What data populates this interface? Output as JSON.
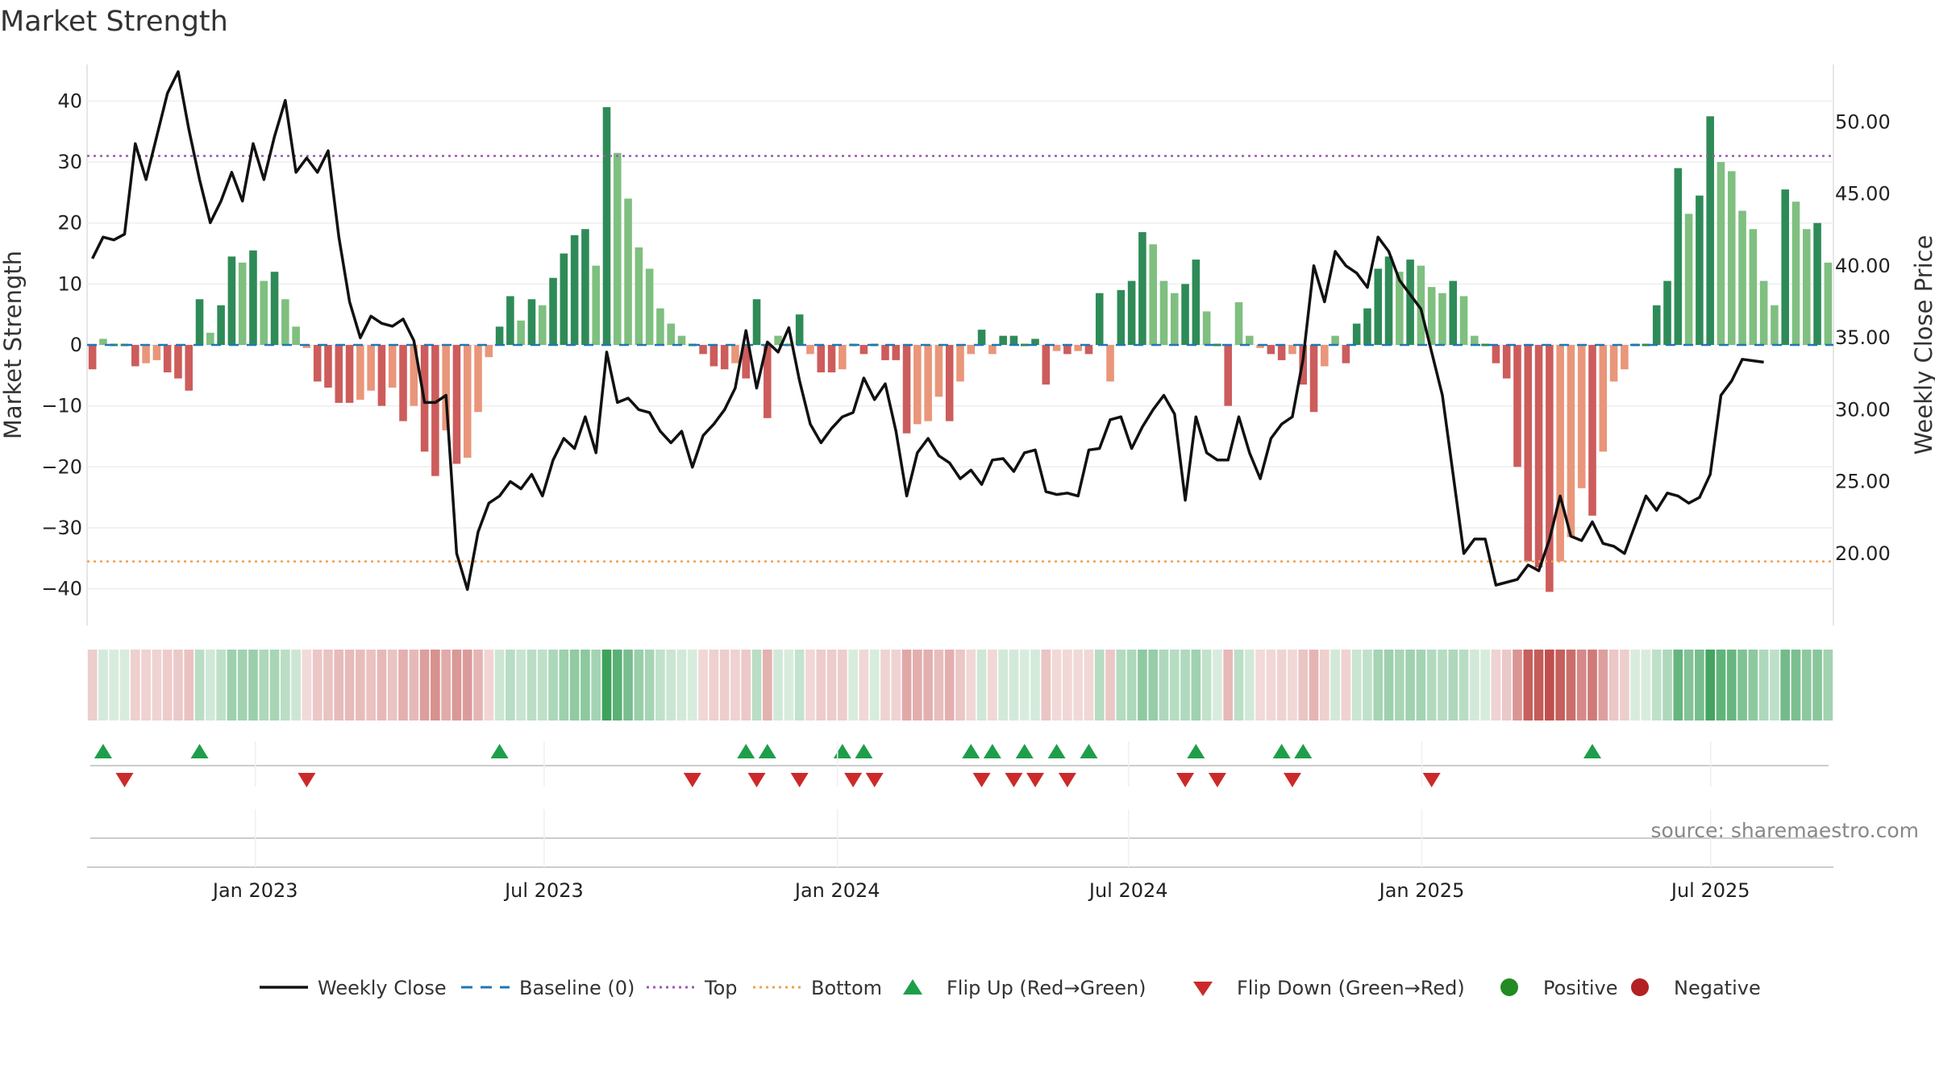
{
  "chart_data": {
    "type": "bar",
    "title": "Market Strength",
    "ylabel_left": "Market Strength",
    "ylabel_right": "Weekly Close Price",
    "source": "source: sharemaestro.com",
    "ylim_left": [
      -46,
      46
    ],
    "ylim_right": [
      15.0,
      54.0
    ],
    "yticks_left": [
      40,
      30,
      20,
      10,
      0,
      -10,
      -20,
      -30,
      -40
    ],
    "yticks_left_labels": [
      "40",
      "30",
      "20",
      "10",
      "0",
      "−10",
      "−20",
      "−30",
      "−40"
    ],
    "yticks_right": [
      50,
      45,
      40,
      35,
      30,
      25,
      20
    ],
    "yticks_right_labels": [
      "50.00",
      "45.00",
      "40.00",
      "35.00",
      "30.00",
      "25.00",
      "20.00"
    ],
    "top_level": 31,
    "bottom_level": -35.5,
    "baseline": 0,
    "x_week_range": [
      0,
      156
    ],
    "x_ticks": [
      {
        "label": "Jan 2023",
        "week": 14.6
      },
      {
        "label": "Jul 2023",
        "week": 40.4
      },
      {
        "label": "Jan 2024",
        "week": 66.6
      },
      {
        "label": "Jul 2024",
        "week": 92.6
      },
      {
        "label": "Jan 2025",
        "week": 118.8
      },
      {
        "label": "Jul 2025",
        "week": 144.6
      }
    ],
    "strength_values": [
      -4,
      1,
      0,
      0,
      -3.5,
      -3,
      -2.5,
      -4.5,
      -5.5,
      -7.5,
      7.5,
      2,
      6.5,
      14.5,
      13.5,
      15.5,
      10.5,
      12,
      7.5,
      3,
      -0.5,
      -6,
      -7,
      -9.5,
      -9.5,
      -9,
      -7.5,
      -10,
      -7,
      -12.5,
      -10,
      -17.5,
      -21.5,
      -14,
      -19.5,
      -18.5,
      -11,
      -2,
      3,
      8,
      4,
      7.5,
      6.5,
      11,
      15,
      18,
      19,
      13,
      39,
      31.5,
      24,
      16,
      12.5,
      6,
      3.5,
      1.5,
      0,
      -1.5,
      -3.5,
      -4,
      -3,
      -5.5,
      7.5,
      -12,
      1.5,
      0,
      5,
      -1.5,
      -4.5,
      -4.5,
      -4,
      0,
      -1.5,
      0,
      -2.5,
      -2.5,
      -14.5,
      -13,
      -12.5,
      -8.5,
      -12.5,
      -6,
      -1.5,
      2.5,
      -1.5,
      1.5,
      1.5,
      0,
      1,
      -6.5,
      -1,
      -1.5,
      -1,
      -1.5,
      8.5,
      -6,
      9,
      10.5,
      18.5,
      16.5,
      10.5,
      8.5,
      10,
      14,
      5.5,
      0,
      -10,
      7,
      1.5,
      -0.5,
      -1.5,
      -2.5,
      -1.5,
      -6.5,
      -11,
      -3.5,
      1.5,
      -3,
      3.5,
      6,
      12.5,
      14.5,
      12,
      14,
      13,
      9.5,
      8.5,
      10.5,
      8,
      1.5,
      0,
      -3,
      -5.5,
      -20,
      -35.5,
      -36.5,
      -40.5,
      -35.5,
      -31.5,
      -23.5,
      -28,
      -17.5,
      -6,
      -4,
      0,
      0,
      6.5,
      10.5,
      29,
      21.5,
      24.5,
      37.5,
      30,
      28.5,
      22,
      19,
      10.5,
      6.5,
      25.5,
      23.5,
      19,
      20,
      13.5
    ],
    "price_values": [
      40.5,
      42,
      41.8,
      42.2,
      48.5,
      46,
      49,
      52,
      53.5,
      49.5,
      46,
      43,
      44.5,
      46.5,
      44.5,
      48.5,
      46,
      49,
      51.5,
      46.5,
      47.5,
      46.5,
      48,
      42,
      37.5,
      35,
      36.5,
      36,
      35.8,
      36.3,
      34.8,
      30.5,
      30.5,
      31,
      20,
      17.5,
      21.5,
      23.5,
      24,
      25,
      24.5,
      25.5,
      24,
      26.5,
      28,
      27.3,
      29.5,
      27,
      34,
      30.5,
      30.8,
      30,
      29.8,
      28.5,
      27.7,
      28.5,
      26,
      28.2,
      29,
      30,
      31.5,
      35.5,
      31.5,
      34.7,
      34,
      35.7,
      32,
      29,
      27.7,
      28.7,
      29.5,
      29.8,
      32.2,
      30.7,
      31.8,
      28.5,
      24,
      27,
      28,
      26.8,
      26.3,
      25.2,
      25.8,
      24.8,
      26.5,
      26.6,
      25.7,
      27,
      27.2,
      24.3,
      24.1,
      24.2,
      24,
      27.2,
      27.3,
      29.3,
      29.5,
      27.3,
      28.8,
      30,
      31,
      29.7,
      23.7,
      29.5,
      27,
      26.5,
      26.5,
      29.5,
      27,
      25.2,
      28,
      29,
      29.5,
      33.5,
      40,
      37.5,
      41,
      40,
      39.5,
      38.5,
      42,
      41,
      39,
      38,
      37,
      34,
      31,
      25.5,
      20,
      21,
      21,
      17.8,
      18,
      18.2,
      19.2,
      18.8,
      21,
      24,
      21.2,
      20.9,
      22.2,
      20.7,
      20.5,
      20,
      22,
      24,
      23,
      24.2,
      24,
      23.5,
      23.9,
      25.5,
      31,
      32,
      33.5,
      33.4,
      33.3
    ],
    "flip_up_weeks": [
      1,
      10,
      38,
      61,
      63,
      70,
      72,
      82,
      84,
      87,
      90,
      93,
      103,
      111,
      113,
      140
    ],
    "flip_down_weeks": [
      3,
      20,
      56,
      62,
      66,
      71,
      73,
      83,
      86,
      88,
      91,
      102,
      105,
      112,
      125
    ],
    "colors": {
      "pos_strong": "#2e8b57",
      "pos_light": "#7fbf7f",
      "neg_strong": "#cd5c5c",
      "neg_light": "#e9967a",
      "price_line": "#111111",
      "baseline": "#1f77b4",
      "top": "#9b59b6",
      "bottom": "#f0a050",
      "flip_up": "#1e9e4a",
      "flip_down": "#cc2a2a",
      "positive": "#228b22",
      "negative": "#b22222"
    },
    "legend": [
      {
        "label": "Weekly Close",
        "kind": "line"
      },
      {
        "label": "Baseline (0)",
        "kind": "dash"
      },
      {
        "label": "Top",
        "kind": "dot-purple"
      },
      {
        "label": "Bottom",
        "kind": "dot-orange"
      },
      {
        "label": "Flip Up (Red→Green)",
        "kind": "tri-up"
      },
      {
        "label": "Flip Down (Green→Red)",
        "kind": "tri-down"
      },
      {
        "label": "Positive",
        "kind": "dot-green"
      },
      {
        "label": "Negative",
        "kind": "dot-red"
      }
    ]
  }
}
